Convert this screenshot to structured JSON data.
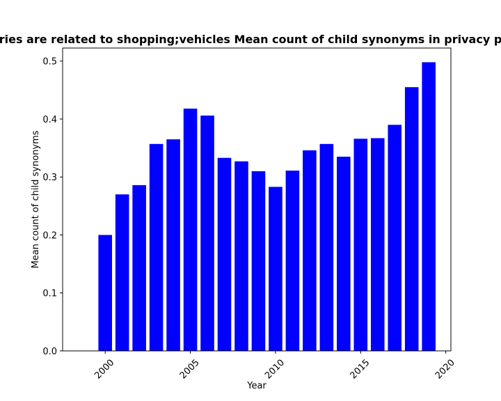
{
  "chart_data": {
    "type": "bar",
    "title": "ries are related to shopping;vehicles Mean count of child synonyms in privacy p",
    "xlabel": "Year",
    "ylabel": "Mean count of child synonyms",
    "categories": [
      2000,
      2001,
      2002,
      2003,
      2004,
      2005,
      2006,
      2007,
      2008,
      2009,
      2010,
      2011,
      2012,
      2013,
      2014,
      2015,
      2016,
      2017,
      2018,
      2019
    ],
    "values": [
      0.2,
      0.27,
      0.286,
      0.357,
      0.365,
      0.418,
      0.406,
      0.333,
      0.327,
      0.31,
      0.283,
      0.311,
      0.346,
      0.357,
      0.335,
      0.366,
      0.367,
      0.39,
      0.455,
      0.498
    ],
    "xlim": [
      1997.5,
      2020.3
    ],
    "ylim": [
      0,
      0.5225
    ],
    "xticks": [
      "2000",
      "2005",
      "2010",
      "2015",
      "2020"
    ],
    "yticks": [
      "0.0",
      "0.1",
      "0.2",
      "0.3",
      "0.4",
      "0.5"
    ],
    "bar_color": "#0000ff",
    "grid": false
  }
}
